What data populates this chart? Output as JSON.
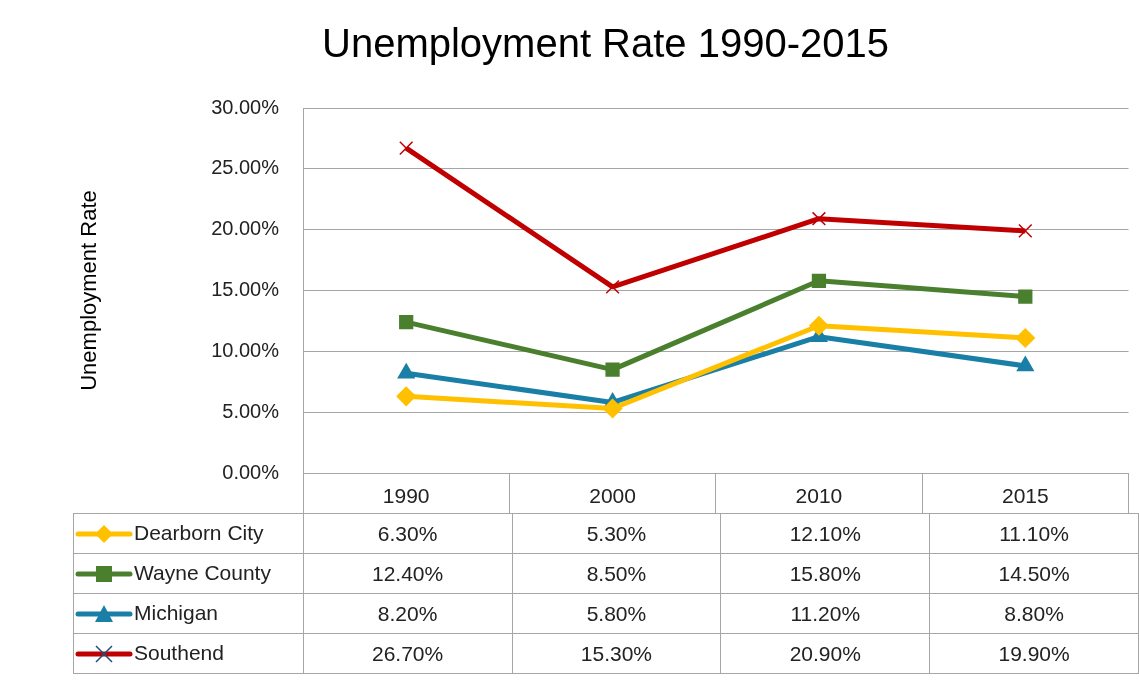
{
  "chart_data": {
    "type": "line",
    "title": "Unemployment Rate 1990-2015",
    "ylabel": "Unemployment Rate",
    "categories": [
      "1990",
      "2000",
      "2010",
      "2015"
    ],
    "series": [
      {
        "name": "Dearborn City",
        "color": "#ffc000",
        "marker": "diamond",
        "values": [
          6.3,
          5.3,
          12.1,
          11.1
        ],
        "value_labels": [
          "6.30%",
          "5.30%",
          "12.10%",
          "11.10%"
        ]
      },
      {
        "name": "Wayne County",
        "color": "#4a7f2e",
        "marker": "square",
        "values": [
          12.4,
          8.5,
          15.8,
          14.5
        ],
        "value_labels": [
          "12.40%",
          "8.50%",
          "15.80%",
          "14.50%"
        ]
      },
      {
        "name": "Michigan",
        "color": "#1a7fa6",
        "marker": "triangle",
        "values": [
          8.2,
          5.8,
          11.2,
          8.8
        ],
        "value_labels": [
          "8.20%",
          "5.80%",
          "11.20%",
          "8.80%"
        ]
      },
      {
        "name": "Southend",
        "color": "#c00000",
        "marker": "cross",
        "values": [
          26.7,
          15.3,
          20.9,
          19.9
        ],
        "value_labels": [
          "26.70%",
          "15.30%",
          "20.90%",
          "19.90%"
        ]
      }
    ],
    "ylim": [
      0,
      30
    ],
    "yticks": [
      {
        "value": 0,
        "label": "0.00%"
      },
      {
        "value": 5,
        "label": "5.00%"
      },
      {
        "value": 10,
        "label": "10.00%"
      },
      {
        "value": 15,
        "label": "15.00%"
      },
      {
        "value": 20,
        "label": "20.00%"
      },
      {
        "value": 25,
        "label": "25.00%"
      },
      {
        "value": 30,
        "label": "30.00%"
      }
    ],
    "grid": "y",
    "legend": "bottom",
    "line_style": "solid"
  }
}
